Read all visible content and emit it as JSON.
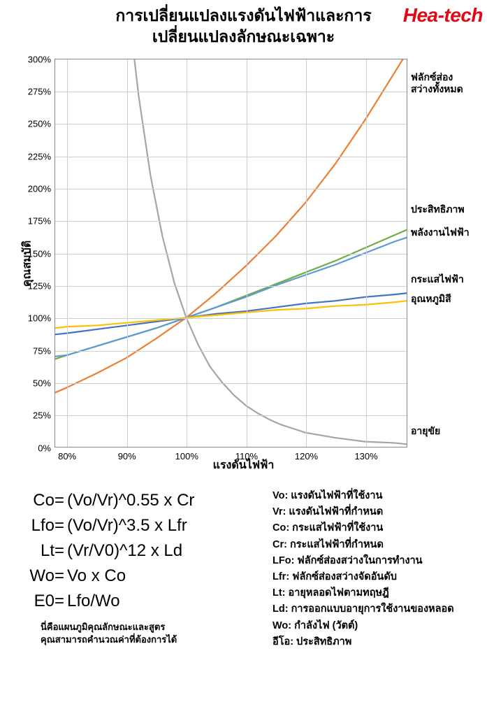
{
  "header": {
    "title": "การเปลี่ยนแปลงแรงดันไฟฟ้าและการเปลี่ยนแปลงลักษณะเฉพาะ",
    "logo": "Hea-tech"
  },
  "chart": {
    "type": "line",
    "x_axis_title": "แรงดันไฟฟ้า",
    "y_axis_title": "คุณสมบัติ",
    "xlim": [
      78,
      137
    ],
    "ylim": [
      0,
      300
    ],
    "x_ticks": [
      80,
      90,
      100,
      110,
      120,
      130
    ],
    "x_tick_labels": [
      "80%",
      "90%",
      "100%",
      "110%",
      "120%",
      "130%"
    ],
    "y_ticks": [
      0,
      25,
      50,
      75,
      100,
      125,
      150,
      175,
      200,
      225,
      250,
      275,
      300
    ],
    "y_tick_labels": [
      "0%",
      "25%",
      "50%",
      "75%",
      "100%",
      "125%",
      "150%",
      "175%",
      "200%",
      "225%",
      "250%",
      "275%",
      "300%"
    ],
    "grid_color": "#cfcfcf",
    "background_color": "#ffffff",
    "border_color": "#888888",
    "line_width": 2.2,
    "series": [
      {
        "name": "luminous_flux",
        "label": "ฟลักซ์ส่อง\nสว่างทั้งหมด",
        "label_y_pct": 5,
        "color": "#ed7d31",
        "points": [
          [
            78,
            42
          ],
          [
            80,
            46
          ],
          [
            85,
            57
          ],
          [
            90,
            69
          ],
          [
            95,
            84
          ],
          [
            100,
            100
          ],
          [
            105,
            119
          ],
          [
            110,
            140
          ],
          [
            115,
            163
          ],
          [
            120,
            189
          ],
          [
            125,
            219
          ],
          [
            130,
            253
          ],
          [
            135,
            290
          ],
          [
            137,
            305
          ]
        ]
      },
      {
        "name": "efficiency",
        "label": "ประสิทธิภาพ",
        "label_y_pct": 39,
        "color": "#70ad47",
        "points": [
          [
            78,
            68
          ],
          [
            80,
            71
          ],
          [
            85,
            78
          ],
          [
            90,
            85
          ],
          [
            95,
            92
          ],
          [
            100,
            100
          ],
          [
            105,
            108
          ],
          [
            110,
            117
          ],
          [
            115,
            126
          ],
          [
            120,
            135
          ],
          [
            125,
            144
          ],
          [
            130,
            154
          ],
          [
            135,
            164
          ],
          [
            137,
            168
          ]
        ]
      },
      {
        "name": "power",
        "label": "พลังงานไฟฟ้า",
        "label_y_pct": 45,
        "color": "#5b9bd5",
        "points": [
          [
            78,
            70
          ],
          [
            80,
            71
          ],
          [
            85,
            78
          ],
          [
            90,
            85
          ],
          [
            95,
            92
          ],
          [
            100,
            100
          ],
          [
            105,
            108
          ],
          [
            110,
            116
          ],
          [
            115,
            125
          ],
          [
            120,
            133
          ],
          [
            125,
            141
          ],
          [
            130,
            150
          ],
          [
            135,
            159
          ],
          [
            137,
            162
          ]
        ]
      },
      {
        "name": "current",
        "label": "กระแสไฟฟ้า",
        "label_y_pct": 57,
        "color": "#4472c4",
        "points": [
          [
            78,
            87
          ],
          [
            80,
            88
          ],
          [
            85,
            91
          ],
          [
            90,
            94
          ],
          [
            95,
            97
          ],
          [
            100,
            100
          ],
          [
            105,
            103
          ],
          [
            110,
            105
          ],
          [
            115,
            108
          ],
          [
            120,
            111
          ],
          [
            125,
            113
          ],
          [
            130,
            116
          ],
          [
            135,
            118
          ],
          [
            137,
            119
          ]
        ]
      },
      {
        "name": "color_temp",
        "label": "อุณหภูมิสี",
        "label_y_pct": 62,
        "color": "#ffc000",
        "points": [
          [
            78,
            92
          ],
          [
            80,
            93
          ],
          [
            85,
            94
          ],
          [
            90,
            96
          ],
          [
            95,
            98
          ],
          [
            100,
            100
          ],
          [
            105,
            102
          ],
          [
            110,
            104
          ],
          [
            115,
            106
          ],
          [
            120,
            107
          ],
          [
            125,
            109
          ],
          [
            130,
            110
          ],
          [
            135,
            112
          ],
          [
            137,
            113
          ]
        ]
      },
      {
        "name": "life",
        "label": "อายุขัย",
        "label_y_pct": 96,
        "color": "#a5a5a5",
        "points": [
          [
            84,
            780
          ],
          [
            86,
            600
          ],
          [
            88,
            460
          ],
          [
            90,
            352
          ],
          [
            92,
            272
          ],
          [
            94,
            210
          ],
          [
            96,
            163
          ],
          [
            98,
            127
          ],
          [
            100,
            100
          ],
          [
            102,
            79
          ],
          [
            104,
            62
          ],
          [
            106,
            50
          ],
          [
            108,
            40
          ],
          [
            110,
            32
          ],
          [
            112,
            26
          ],
          [
            114,
            21
          ],
          [
            116,
            17
          ],
          [
            118,
            14
          ],
          [
            120,
            11
          ],
          [
            125,
            7
          ],
          [
            130,
            4
          ],
          [
            135,
            3
          ],
          [
            137,
            2
          ]
        ]
      }
    ]
  },
  "formulas": [
    {
      "lhs": "Co=",
      "rhs": "(Vo/Vr)^0.55 x Cr"
    },
    {
      "lhs": "Lfo=",
      "rhs": "(Vo/Vr)^3.5   x Lfr"
    },
    {
      "lhs": "Lt=",
      "rhs": "(Vr/V0)^12     x Ld"
    },
    {
      "lhs": "Wo=",
      "rhs": " Vo x Co"
    },
    {
      "lhs": "E0=",
      "rhs": " Lfo/Wo"
    }
  ],
  "note": "นี่คือแผนภูมิคุณลักษณะและสูตร\nคุณสามารถคำนวณค่าที่ต้องการได้",
  "definitions": [
    "Vo: แรงดันไฟฟ้าที่ใช้งาน",
    "Vr: แรงดันไฟฟ้าที่กำหนด",
    "Co: กระแสไฟฟ้าที่ใช้งาน",
    "Cr: กระแสไฟฟ้าที่กำหนด",
    "LFo: ฟลักซ์ส่องสว่างในการทำงาน",
    "Lfr: ฟลักซ์ส่องสว่างจัดอันดับ",
    "Lt: อายุหลอดไฟตามทฤษฎี",
    "Ld: การออกแบบอายุการใช้งานของหลอด",
    "Wo: กำลังไฟ (วัตต์)",
    "อีโอ: ประสิทธิภาพ"
  ]
}
